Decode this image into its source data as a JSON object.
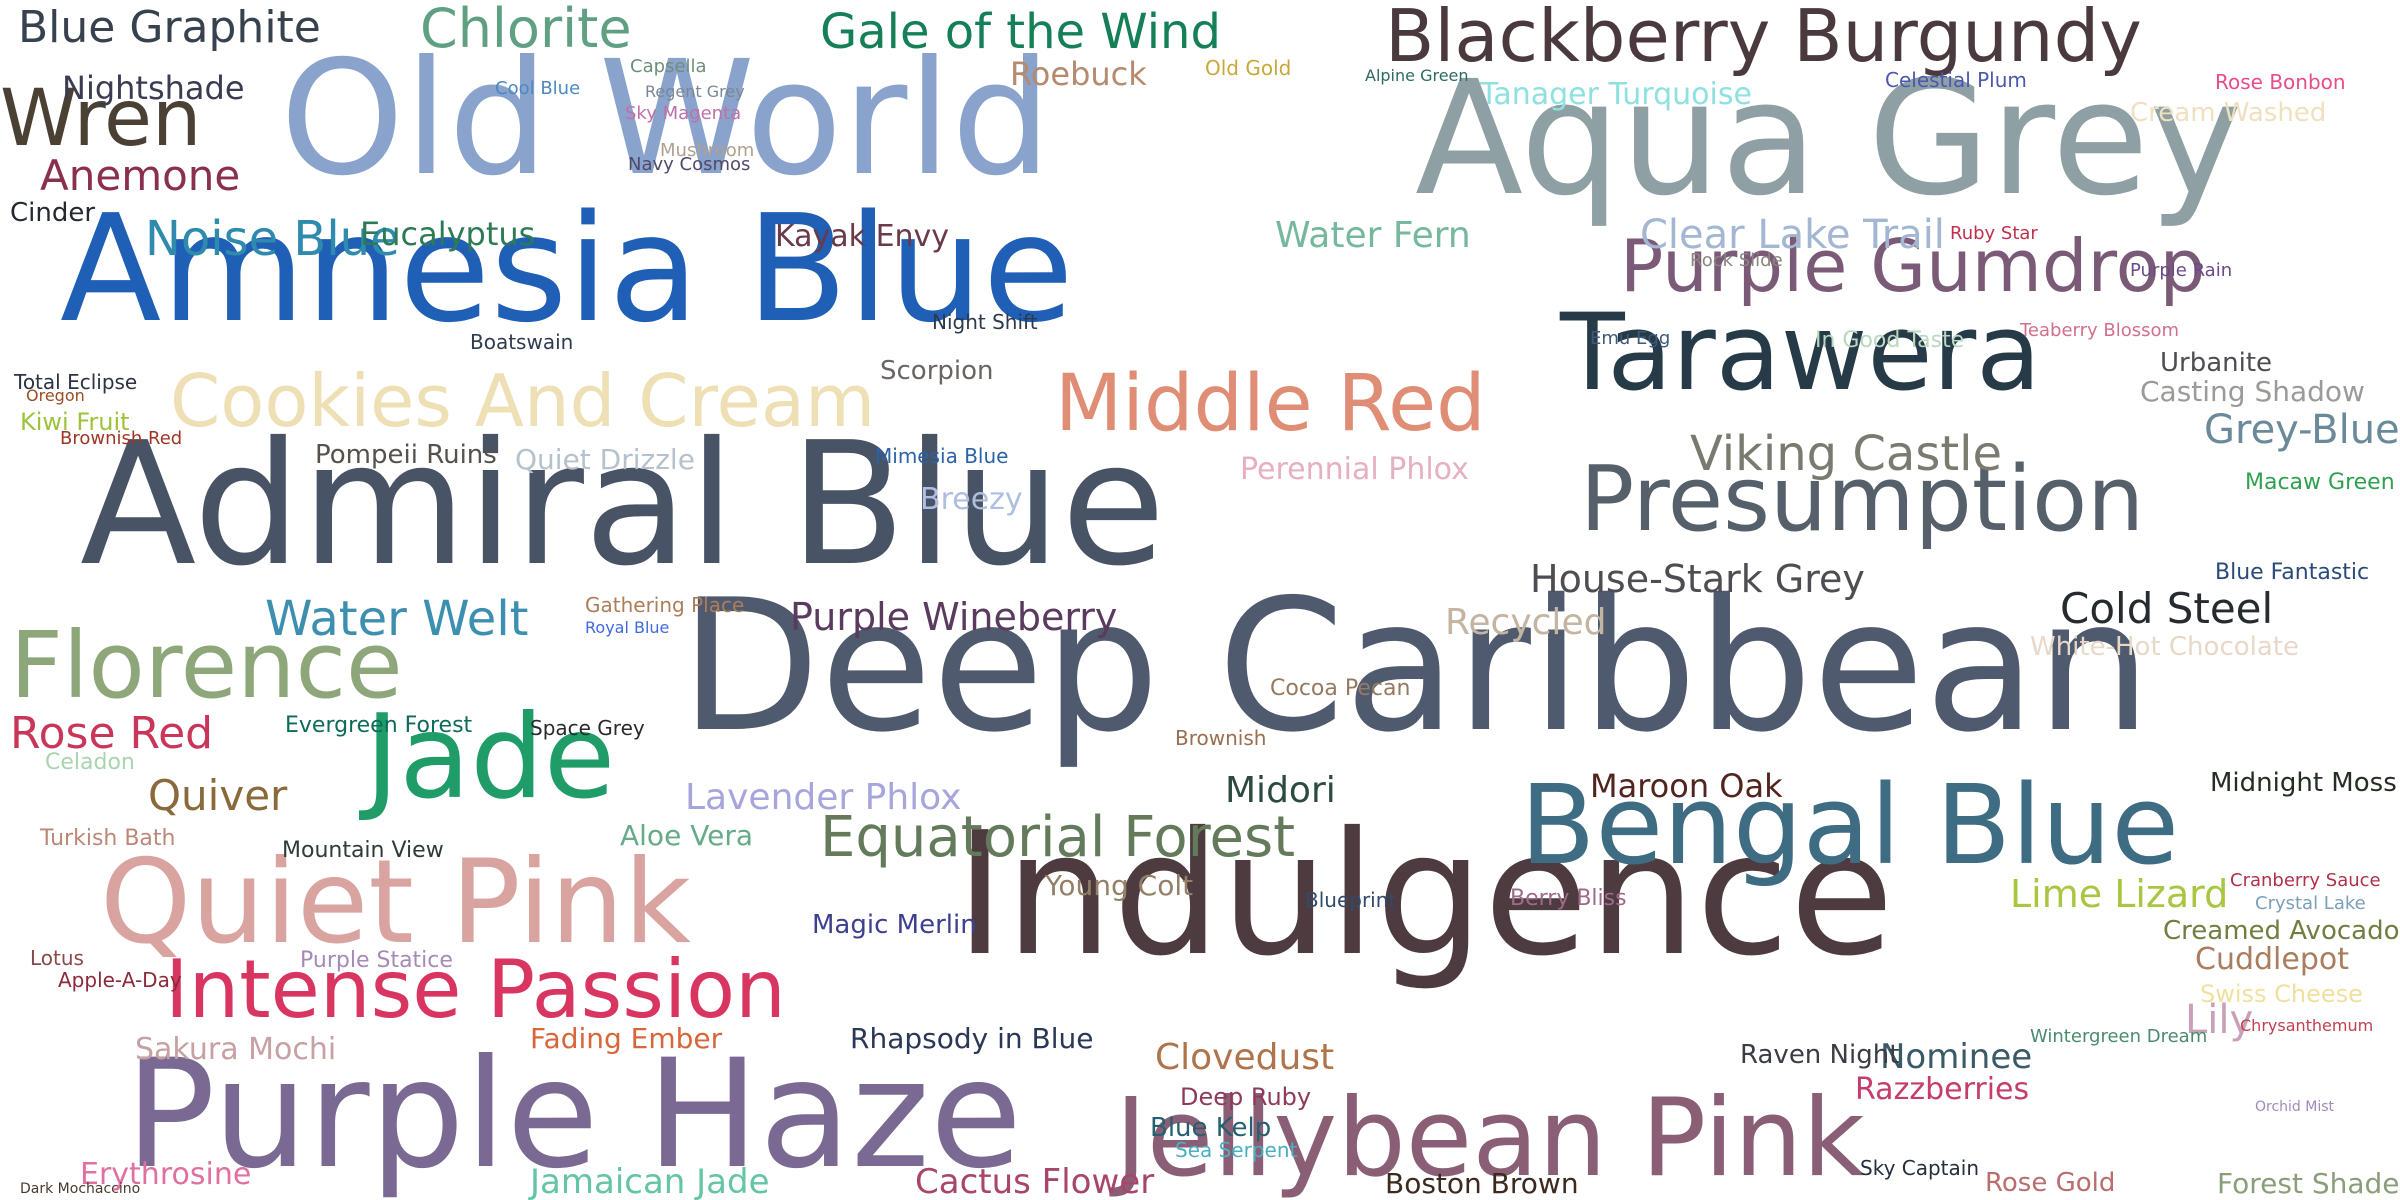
{
  "words": [
    {
      "text": "Deep Caribbean",
      "color": "#505a6e"
    },
    {
      "text": "Admiral Blue",
      "color": "#485466"
    },
    {
      "text": "Indulgence",
      "color": "#4d3b40"
    },
    {
      "text": "Amnesia Blue",
      "color": "#1f5fb6"
    },
    {
      "text": "Aqua Grey",
      "color": "#8ea0a3"
    },
    {
      "text": "Old World",
      "color": "#8aa3cc"
    },
    {
      "text": "Purple Haze",
      "color": "#7a6a93"
    },
    {
      "text": "Jellybean Pink",
      "color": "#8a5f76"
    },
    {
      "text": "Bengal Blue",
      "color": "#3e6c82"
    },
    {
      "text": "Tarawera",
      "color": "#263a47"
    },
    {
      "text": "Presumption",
      "color": "#56606b"
    },
    {
      "text": "Quiet Pink",
      "color": "#d9a3a0"
    },
    {
      "text": "Jade",
      "color": "#1f9c68"
    },
    {
      "text": "Intense Passion",
      "color": "#d83561"
    },
    {
      "text": "Blackberry Burgundy",
      "color": "#4a3a3d"
    },
    {
      "text": "Purple Gumdrop",
      "color": "#7b5a78"
    },
    {
      "text": "Florence",
      "color": "#8ea77a"
    },
    {
      "text": "Middle Red",
      "color": "#e08d76"
    },
    {
      "text": "Cookies And Cream",
      "color": "#eedfb5"
    },
    {
      "text": "Wren",
      "color": "#4a4033"
    },
    {
      "text": "Equatorial Forest",
      "color": "#637b5a"
    },
    {
      "text": "Viking Castle",
      "color": "#7a7a70"
    },
    {
      "text": "Gale of the Wind",
      "color": "#157f57"
    },
    {
      "text": "Chlorite",
      "color": "#5f9f82"
    },
    {
      "text": "Blue Graphite",
      "color": "#38424e"
    },
    {
      "text": "Nightshade",
      "color": "#3b3b52"
    },
    {
      "text": "Anemone",
      "color": "#8a2f4c"
    },
    {
      "text": "Noise Blue",
      "color": "#2e8bae"
    },
    {
      "text": "Water Welt",
      "color": "#3d8fb0"
    },
    {
      "text": "Rose Red",
      "color": "#c9365a"
    },
    {
      "text": "Quiver",
      "color": "#8a6a3a"
    },
    {
      "text": "Clear Lake Trail",
      "color": "#a3b6d2"
    },
    {
      "text": "Cold Steel",
      "color": "#262b2f"
    },
    {
      "text": "House-Stark Grey",
      "color": "#4e4e52"
    },
    {
      "text": "Purple Wineberry",
      "color": "#5a3a5e"
    },
    {
      "text": "Lavender Phlox",
      "color": "#a6a6dc"
    },
    {
      "text": "Recycled",
      "color": "#c4b5a3"
    },
    {
      "text": "Maroon Oak",
      "color": "#52241e"
    },
    {
      "text": "Midori",
      "color": "#2c4a3e"
    },
    {
      "text": "Lime Lizard",
      "color": "#a9c640"
    },
    {
      "text": "Cactus Flower",
      "color": "#a8456b"
    },
    {
      "text": "Jamaican Jade",
      "color": "#64c4a6"
    },
    {
      "text": "Clovedust",
      "color": "#b0744d"
    },
    {
      "text": "Sakura Mochi",
      "color": "#c7a0a3"
    },
    {
      "text": "Rhapsody in Blue",
      "color": "#2a3756"
    },
    {
      "text": "Nominee",
      "color": "#3a5a68"
    },
    {
      "text": "Razzberries",
      "color": "#c53e6a"
    },
    {
      "text": "Boston Brown",
      "color": "#3d2a1f"
    },
    {
      "text": "Forest Shade",
      "color": "#8b9e7a"
    },
    {
      "text": "Rose Gold",
      "color": "#b86e6e"
    },
    {
      "text": "Eucalyptus",
      "color": "#2e7a55"
    },
    {
      "text": "Water Fern",
      "color": "#75b89c"
    },
    {
      "text": "Kayak Envy",
      "color": "#6a3a4a"
    },
    {
      "text": "Scorpion",
      "color": "#6a6462"
    },
    {
      "text": "Tanager Turquoise",
      "color": "#8fe0e0"
    },
    {
      "text": "Roebuck",
      "color": "#b58a6e"
    },
    {
      "text": "Grey-Blue",
      "color": "#6a8a99"
    },
    {
      "text": "Casting Shadow",
      "color": "#9a9a98"
    },
    {
      "text": "Urbanite",
      "color": "#4c4e52"
    },
    {
      "text": "Mimesia Blue",
      "color": "#2b62a8"
    },
    {
      "text": "Breezy",
      "color": "#aebde0"
    },
    {
      "text": "Pompeii Ruins",
      "color": "#55524c"
    },
    {
      "text": "Kiwi Fruit",
      "color": "#9ec33b"
    },
    {
      "text": "Quiet Drizzle",
      "color": "#b5c2cc"
    },
    {
      "text": "Perennial Phlox",
      "color": "#e6b0c2"
    },
    {
      "text": "Mountain View",
      "color": "#2e3b36"
    },
    {
      "text": "Aloe Vera",
      "color": "#66aa88"
    },
    {
      "text": "Young Colt",
      "color": "#948068"
    },
    {
      "text": "Magic Merlin",
      "color": "#3e3f8f"
    },
    {
      "text": "Cuddlepot",
      "color": "#a97d5d"
    },
    {
      "text": "Creamed Avocado",
      "color": "#6f7f40"
    },
    {
      "text": "Apple-A-Day",
      "color": "#8c2a3a"
    },
    {
      "text": "Fading Ember",
      "color": "#d8663a"
    },
    {
      "text": "Raven Night",
      "color": "#3a3d44"
    },
    {
      "text": "Blue Kelp",
      "color": "#256070"
    },
    {
      "text": "Deep Ruby",
      "color": "#8e3a5a"
    },
    {
      "text": "Lily",
      "color": "#c8a0b8"
    },
    {
      "text": "Midnight Moss",
      "color": "#242e22"
    },
    {
      "text": "Cream Washed",
      "color": "#f0e0c0"
    },
    {
      "text": "Purple Statice",
      "color": "#a789b8"
    },
    {
      "text": "Erythrosine",
      "color": "#e070a0"
    },
    {
      "text": "Rose Bonbon",
      "color": "#e84c8a"
    },
    {
      "text": "Celestial Plum",
      "color": "#4a58b0"
    },
    {
      "text": "Sky Magenta",
      "color": "#c070a8"
    },
    {
      "text": "Cinder",
      "color": "#242a30"
    },
    {
      "text": "Total Eclipse",
      "color": "#2c3344"
    },
    {
      "text": "Boatswain",
      "color": "#2e3b50"
    },
    {
      "text": "Night Shift",
      "color": "#2c3a4e"
    },
    {
      "text": "Mushroom",
      "color": "#b0a08e"
    },
    {
      "text": "Navy Cosmos",
      "color": "#504a6a"
    },
    {
      "text": "Capsella",
      "color": "#6f8f7a"
    },
    {
      "text": "Regent Grey",
      "color": "#7a8894"
    },
    {
      "text": "Cool Blue",
      "color": "#4a8ac0"
    },
    {
      "text": "Old Gold",
      "color": "#c8a83a"
    },
    {
      "text": "Alpine Green",
      "color": "#2e6a5e"
    },
    {
      "text": "Rock Slide",
      "color": "#8a8580"
    },
    {
      "text": "Ruby Star",
      "color": "#c0304a"
    },
    {
      "text": "Teaberry Blossom",
      "color": "#d0708a"
    },
    {
      "text": "Emu Egg",
      "color": "#3e5a78"
    },
    {
      "text": "In Good Taste",
      "color": "#b8d8c0"
    },
    {
      "text": "Oregon",
      "color": "#9a4c22"
    },
    {
      "text": "Brownish Red",
      "color": "#9e3623"
    },
    {
      "text": "Gathering Place",
      "color": "#ad7d5a"
    },
    {
      "text": "Royal Blue",
      "color": "#4169e1"
    },
    {
      "text": "Evergreen Forest",
      "color": "#0e6a5a"
    },
    {
      "text": "Space Grey",
      "color": "#2a2a2a"
    },
    {
      "text": "Turkish Bath",
      "color": "#bb8878"
    },
    {
      "text": "Celadon",
      "color": "#aad4b0"
    },
    {
      "text": "Cocoa Pecan",
      "color": "#957a60"
    },
    {
      "text": "Brownish",
      "color": "#9a6e50"
    },
    {
      "text": "Blueprint",
      "color": "#304a6a"
    },
    {
      "text": "Berry Bliss",
      "color": "#9e6a88"
    },
    {
      "text": "Swiss Cheese",
      "color": "#f0e0a0"
    },
    {
      "text": "Cranberry Sauce",
      "color": "#b0304a"
    },
    {
      "text": "Crystal Lake",
      "color": "#7aa0b8"
    },
    {
      "text": "Blue Fantastic",
      "color": "#2a4a7a"
    },
    {
      "text": "Macaw Green",
      "color": "#30a050"
    },
    {
      "text": "White-Hot Chocolate",
      "color": "#e8d8c8"
    },
    {
      "text": "Purple Rain",
      "color": "#6a4a8a"
    },
    {
      "text": "Sea Serpent",
      "color": "#4ab0c0"
    },
    {
      "text": "Lotus",
      "color": "#8a4a4a"
    },
    {
      "text": "Dark Mochaccino",
      "color": "#4a3a2e"
    },
    {
      "text": "Wintergreen Dream",
      "color": "#4a8a6e"
    },
    {
      "text": "Sky Captain",
      "color": "#262e3a"
    },
    {
      "text": "Chrysanthemum",
      "color": "#c04050"
    },
    {
      "text": "Orchid Mist",
      "color": "#a08ab8"
    }
  ]
}
